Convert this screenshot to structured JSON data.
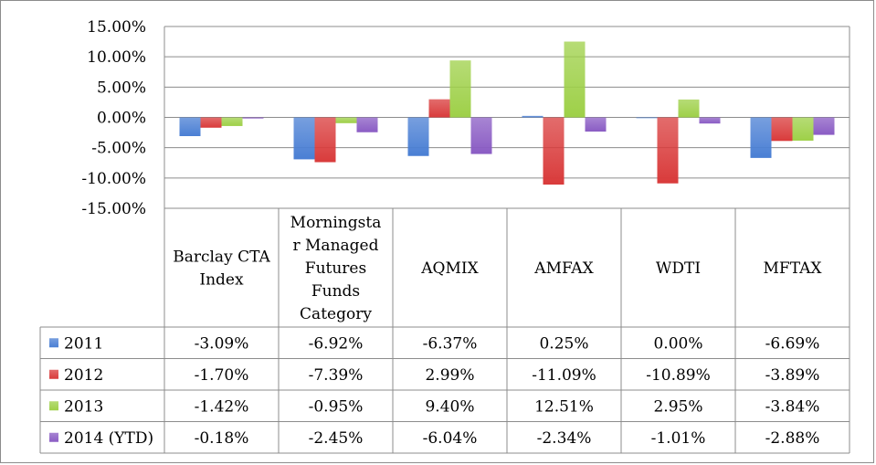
{
  "chart_data": {
    "type": "bar",
    "title": "",
    "xlabel": "",
    "ylabel": "",
    "ylim": [
      -15,
      15
    ],
    "y_ticks": [
      "15.00%",
      "10.00%",
      "5.00%",
      "0.00%",
      "-5.00%",
      "-10.00%",
      "-15.00%"
    ],
    "y_tick_values": [
      15,
      10,
      5,
      0,
      -5,
      -10,
      -15
    ],
    "categories": [
      [
        "Barclay CTA",
        "Index"
      ],
      [
        "Morningsta",
        "r Managed",
        "Futures",
        "Funds",
        "Category"
      ],
      [
        "AQMIX"
      ],
      [
        "AMFAX"
      ],
      [
        "WDTI"
      ],
      [
        "MFTAX"
      ]
    ],
    "series": [
      {
        "name": "2011",
        "color": "#4a7fd4",
        "values": [
          -3.09,
          -6.92,
          -6.37,
          0.25,
          0.0,
          -6.69
        ],
        "labels": [
          "-3.09%",
          "-6.92%",
          "-6.37%",
          "0.25%",
          "0.00%",
          "-6.69%"
        ]
      },
      {
        "name": "2012",
        "color": "#d93b3b",
        "values": [
          -1.7,
          -7.39,
          2.99,
          -11.09,
          -10.89,
          -3.89
        ],
        "labels": [
          "-1.70%",
          "-7.39%",
          "2.99%",
          "-11.09%",
          "-10.89%",
          "-3.89%"
        ]
      },
      {
        "name": "2013",
        "color": "#9ed048",
        "values": [
          -1.42,
          -0.95,
          9.4,
          12.51,
          2.95,
          -3.84
        ],
        "labels": [
          "-1.42%",
          "-0.95%",
          "9.40%",
          "12.51%",
          "2.95%",
          "-3.84%"
        ]
      },
      {
        "name": "2014 (YTD)",
        "color": "#8a5cc4",
        "values": [
          -0.18,
          -2.45,
          -6.04,
          -2.34,
          -1.01,
          -2.88
        ],
        "labels": [
          "-0.18%",
          "-2.45%",
          "-6.04%",
          "-2.34%",
          "-1.01%",
          "-2.88%"
        ]
      }
    ],
    "grid": true,
    "legend": "data-table"
  }
}
